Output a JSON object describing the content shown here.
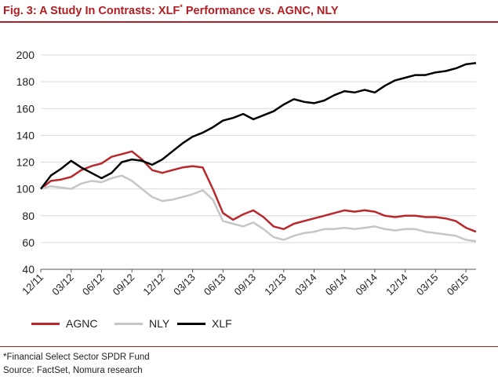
{
  "figure": {
    "title_main": "Fig. 3: A Study In Contrasts: XLF",
    "title_sup": "*",
    "title_rest": " Performance vs. AGNC, NLY",
    "footnote": "*Financial Select Sector SPDR Fund",
    "source": "Source: FactSet, Nomura research"
  },
  "chart_data": {
    "type": "line",
    "title": "Fig. 3: A Study In Contrasts: XLF* Performance vs. AGNC, NLY",
    "xlabel": "",
    "ylabel": "",
    "ylim": [
      40,
      200
    ],
    "yticks": [
      40,
      60,
      80,
      100,
      120,
      140,
      160,
      180,
      200
    ],
    "xticks": [
      "12/11",
      "03/12",
      "06/12",
      "09/12",
      "12/12",
      "03/13",
      "06/13",
      "09/13",
      "12/13",
      "03/14",
      "06/14",
      "09/14",
      "12/14",
      "03/15",
      "06/15"
    ],
    "grid": true,
    "legend_position": "bottom",
    "x": [
      "12/11",
      "01/12",
      "02/12",
      "03/12",
      "04/12",
      "05/12",
      "06/12",
      "07/12",
      "08/12",
      "09/12",
      "10/12",
      "11/12",
      "12/12",
      "01/13",
      "02/13",
      "03/13",
      "04/13",
      "05/13",
      "06/13",
      "07/13",
      "08/13",
      "09/13",
      "10/13",
      "11/13",
      "12/13",
      "01/14",
      "02/14",
      "03/14",
      "04/14",
      "05/14",
      "06/14",
      "07/14",
      "08/14",
      "09/14",
      "10/14",
      "11/14",
      "12/14",
      "01/15",
      "02/15",
      "03/15",
      "04/15",
      "05/15",
      "06/15",
      "07/15"
    ],
    "series": [
      {
        "name": "AGNC",
        "color": "#b9282d",
        "values": [
          100,
          106,
          107,
          109,
          114,
          117,
          119,
          124,
          126,
          128,
          122,
          114,
          112,
          114,
          116,
          117,
          116,
          100,
          82,
          77,
          81,
          84,
          79,
          72,
          70,
          74,
          76,
          78,
          80,
          82,
          84,
          83,
          84,
          83,
          80,
          79,
          80,
          80,
          79,
          79,
          78,
          76,
          71,
          68
        ]
      },
      {
        "name": "NLY",
        "color": "#c6c6c6",
        "values": [
          100,
          102,
          101,
          100,
          104,
          106,
          105,
          108,
          110,
          106,
          100,
          94,
          91,
          92,
          94,
          96,
          99,
          92,
          76,
          74,
          72,
          75,
          70,
          64,
          62,
          65,
          67,
          68,
          70,
          70,
          71,
          70,
          71,
          72,
          70,
          69,
          70,
          70,
          68,
          67,
          66,
          65,
          62,
          61
        ]
      },
      {
        "name": "XLF",
        "color": "#000000",
        "values": [
          100,
          110,
          115,
          121,
          116,
          112,
          108,
          112,
          120,
          122,
          121,
          118,
          122,
          128,
          134,
          139,
          142,
          146,
          151,
          153,
          156,
          152,
          155,
          158,
          163,
          167,
          165,
          164,
          166,
          170,
          173,
          172,
          174,
          172,
          177,
          181,
          183,
          185,
          185,
          187,
          188,
          190,
          193,
          194
        ]
      }
    ]
  }
}
